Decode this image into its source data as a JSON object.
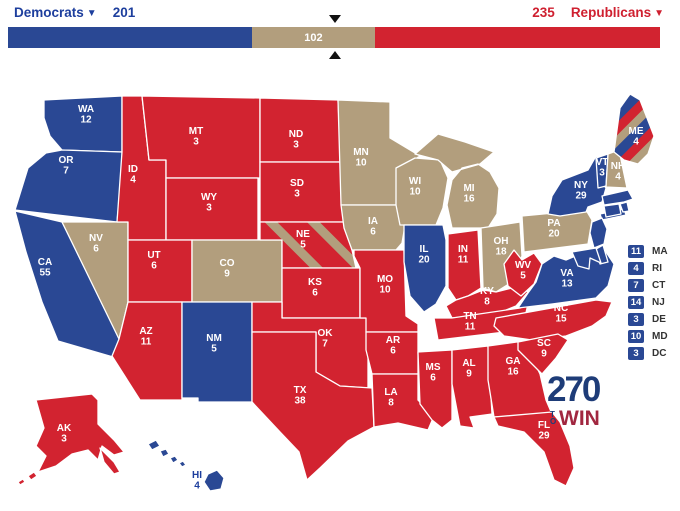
{
  "banner": {
    "dem_label": "Democrats",
    "dem_ev": "201",
    "rep_label": "Republicans",
    "rep_ev": "235",
    "tossup_ev": "102",
    "win_threshold": "270"
  },
  "colors": {
    "dem": "#2a4894",
    "rep": "#d22330",
    "tossup": "#b29e7d",
    "header_dem": "#1d3e9d",
    "header_rep": "#cf2030",
    "marker": "#111111",
    "logo_blue": "#1e3c78",
    "logo_red": "#a12740",
    "list_label": "#333333",
    "state_label": "#ffffff"
  },
  "logo": {
    "big": "270",
    "to": "TO",
    "win": "WIN"
  },
  "sidebar_states": [
    {
      "abbr": "MA",
      "ev": "11"
    },
    {
      "abbr": "RI",
      "ev": "4"
    },
    {
      "abbr": "CT",
      "ev": "7"
    },
    {
      "abbr": "NJ",
      "ev": "14"
    },
    {
      "abbr": "DE",
      "ev": "3"
    },
    {
      "abbr": "MD",
      "ev": "10"
    },
    {
      "abbr": "DC",
      "ev": "3"
    }
  ],
  "map": {
    "states": [
      {
        "abbr": "WA",
        "ev": "12",
        "party": "dem"
      },
      {
        "abbr": "OR",
        "ev": "7",
        "party": "dem"
      },
      {
        "abbr": "CA",
        "ev": "55",
        "party": "dem"
      },
      {
        "abbr": "NV",
        "ev": "6",
        "party": "tossup"
      },
      {
        "abbr": "ID",
        "ev": "4",
        "party": "rep"
      },
      {
        "abbr": "MT",
        "ev": "3",
        "party": "rep"
      },
      {
        "abbr": "WY",
        "ev": "3",
        "party": "rep"
      },
      {
        "abbr": "UT",
        "ev": "6",
        "party": "rep"
      },
      {
        "abbr": "CO",
        "ev": "9",
        "party": "tossup"
      },
      {
        "abbr": "AZ",
        "ev": "11",
        "party": "rep"
      },
      {
        "abbr": "NM",
        "ev": "5",
        "party": "dem"
      },
      {
        "abbr": "ND",
        "ev": "3",
        "party": "rep"
      },
      {
        "abbr": "SD",
        "ev": "3",
        "party": "rep"
      },
      {
        "abbr": "NE",
        "ev": "5",
        "party": "split-rep"
      },
      {
        "abbr": "KS",
        "ev": "6",
        "party": "rep"
      },
      {
        "abbr": "OK",
        "ev": "7",
        "party": "rep"
      },
      {
        "abbr": "TX",
        "ev": "38",
        "party": "rep"
      },
      {
        "abbr": "MN",
        "ev": "10",
        "party": "tossup"
      },
      {
        "abbr": "IA",
        "ev": "6",
        "party": "tossup"
      },
      {
        "abbr": "MO",
        "ev": "10",
        "party": "rep"
      },
      {
        "abbr": "AR",
        "ev": "6",
        "party": "rep"
      },
      {
        "abbr": "LA",
        "ev": "8",
        "party": "rep"
      },
      {
        "abbr": "WI",
        "ev": "10",
        "party": "tossup"
      },
      {
        "abbr": "MI",
        "ev": "16",
        "party": "tossup"
      },
      {
        "abbr": "IL",
        "ev": "20",
        "party": "dem"
      },
      {
        "abbr": "IN",
        "ev": "11",
        "party": "rep"
      },
      {
        "abbr": "OH",
        "ev": "18",
        "party": "tossup"
      },
      {
        "abbr": "KY",
        "ev": "8",
        "party": "rep"
      },
      {
        "abbr": "TN",
        "ev": "11",
        "party": "rep"
      },
      {
        "abbr": "MS",
        "ev": "6",
        "party": "rep"
      },
      {
        "abbr": "AL",
        "ev": "9",
        "party": "rep"
      },
      {
        "abbr": "GA",
        "ev": "16",
        "party": "rep"
      },
      {
        "abbr": "FL",
        "ev": "29",
        "party": "rep"
      },
      {
        "abbr": "WV",
        "ev": "5",
        "party": "rep"
      },
      {
        "abbr": "VA",
        "ev": "13",
        "party": "dem"
      },
      {
        "abbr": "NC",
        "ev": "15",
        "party": "rep"
      },
      {
        "abbr": "SC",
        "ev": "9",
        "party": "rep"
      },
      {
        "abbr": "PA",
        "ev": "20",
        "party": "tossup"
      },
      {
        "abbr": "NY",
        "ev": "29",
        "party": "dem"
      },
      {
        "abbr": "VT",
        "ev": "3",
        "party": "dem"
      },
      {
        "abbr": "NH",
        "ev": "4",
        "party": "tossup"
      },
      {
        "abbr": "ME",
        "ev": "4",
        "party": "split-mix"
      },
      {
        "abbr": "AK",
        "ev": "3",
        "party": "rep"
      },
      {
        "abbr": "HI",
        "ev": "4",
        "party": "dem",
        "label_dark": true
      }
    ],
    "east_small_states": [
      {
        "abbr": "MA",
        "party": "dem"
      },
      {
        "abbr": "RI",
        "party": "dem"
      },
      {
        "abbr": "CT",
        "party": "dem"
      },
      {
        "abbr": "NJ",
        "party": "dem"
      },
      {
        "abbr": "DE",
        "party": "dem"
      },
      {
        "abbr": "MD",
        "party": "dem"
      }
    ]
  }
}
